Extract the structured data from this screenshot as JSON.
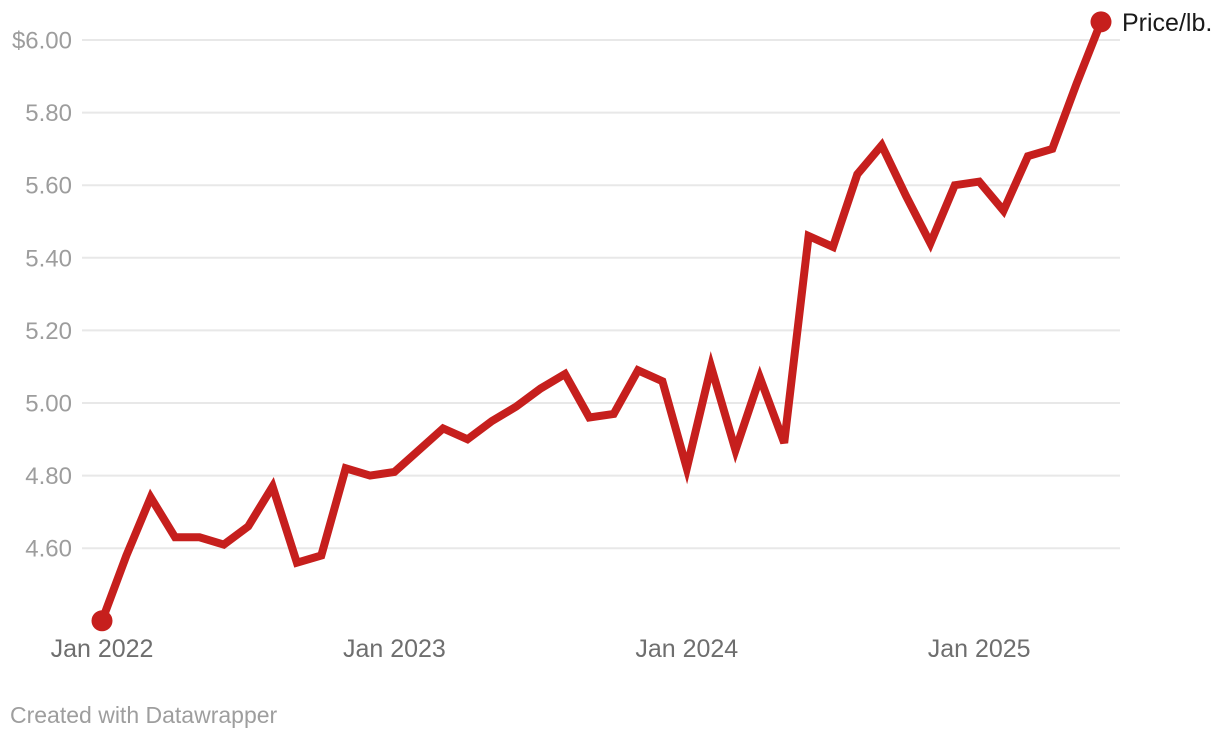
{
  "chart_data": {
    "type": "line",
    "series_label": "Price/lb.",
    "x": [
      "Jan 2022",
      "Feb 2022",
      "Mar 2022",
      "Apr 2022",
      "May 2022",
      "Jun 2022",
      "Jul 2022",
      "Aug 2022",
      "Sep 2022",
      "Oct 2022",
      "Nov 2022",
      "Dec 2022",
      "Jan 2023",
      "Feb 2023",
      "Mar 2023",
      "Apr 2023",
      "May 2023",
      "Jun 2023",
      "Jul 2023",
      "Aug 2023",
      "Sep 2023",
      "Oct 2023",
      "Nov 2023",
      "Dec 2023",
      "Jan 2024",
      "Feb 2024",
      "Mar 2024",
      "Apr 2024",
      "May 2024",
      "Jun 2024",
      "Jul 2024",
      "Aug 2024",
      "Sep 2024",
      "Oct 2024",
      "Nov 2024",
      "Dec 2024",
      "Jan 2025",
      "Feb 2025",
      "Mar 2025",
      "Apr 2025",
      "May 2025",
      "Jun 2025"
    ],
    "values": [
      4.4,
      4.58,
      4.74,
      4.63,
      4.63,
      4.61,
      4.66,
      4.77,
      4.56,
      4.58,
      4.82,
      4.8,
      4.81,
      4.87,
      4.93,
      4.9,
      4.95,
      4.99,
      5.04,
      5.08,
      4.96,
      4.97,
      5.09,
      5.06,
      4.82,
      5.1,
      4.87,
      5.07,
      4.89,
      5.46,
      5.43,
      5.63,
      5.71,
      5.57,
      5.44,
      5.6,
      5.61,
      5.53,
      5.68,
      5.7,
      5.88,
      6.05
    ],
    "y_ticks": [
      {
        "value": 6.0,
        "label": "$6.00"
      },
      {
        "value": 5.8,
        "label": "5.80"
      },
      {
        "value": 5.6,
        "label": "5.60"
      },
      {
        "value": 5.4,
        "label": "5.40"
      },
      {
        "value": 5.2,
        "label": "5.20"
      },
      {
        "value": 5.0,
        "label": "5.00"
      },
      {
        "value": 4.8,
        "label": "4.80"
      },
      {
        "value": 4.6,
        "label": "4.60"
      }
    ],
    "x_ticks": [
      {
        "index": 0,
        "label": "Jan 2022"
      },
      {
        "index": 12,
        "label": "Jan 2023"
      },
      {
        "index": 24,
        "label": "Jan 2024"
      },
      {
        "index": 36,
        "label": "Jan 2025"
      }
    ],
    "ylim": [
      4.4,
      6.05
    ],
    "grid": "horizontal",
    "legend_position": "end-of-line",
    "endpoint_markers": true,
    "title": "",
    "xlabel": "",
    "ylabel": ""
  },
  "colors": {
    "line": "#c61f1d",
    "grid": "#e8e8e8",
    "y_label": "#9d9d9d",
    "x_label": "#6e6e6e",
    "legend_text": "#1a1a1a",
    "footer_text": "#9e9e9e",
    "background": "#ffffff"
  },
  "footer": {
    "credit": "Created with Datawrapper"
  }
}
